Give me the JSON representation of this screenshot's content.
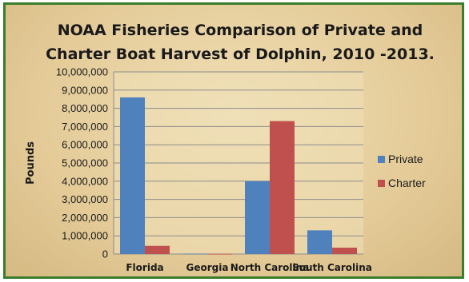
{
  "chart_data": {
    "type": "bar",
    "title": [
      "NOAA Fisheries Comparison of Private and",
      "Charter Boat Harvest of Dolphin, 2010 -2013."
    ],
    "xlabel": "",
    "ylabel": "Pounds",
    "categories": [
      "Florida",
      "Georgia",
      "North Carolina",
      "South Carolina"
    ],
    "series": [
      {
        "name": "Private",
        "color": "#4f81bd",
        "values": [
          8600000,
          20000,
          4000000,
          1300000
        ]
      },
      {
        "name": "Charter",
        "color": "#c0504d",
        "values": [
          450000,
          10000,
          7300000,
          350000
        ]
      }
    ],
    "ylim": [
      0,
      10000000
    ],
    "yticks": [
      "0",
      "1,000,000",
      "2,000,000",
      "3,000,000",
      "4,000,000",
      "5,000,000",
      "6,000,000",
      "7,000,000",
      "8,000,000",
      "9,000,000",
      "10,000,000"
    ],
    "grid": true,
    "legend_position": "right",
    "colors": {
      "frame_border": "#3a7d2a",
      "gridline": "#8c8c8c",
      "plot_area": "#efe0b8"
    }
  }
}
